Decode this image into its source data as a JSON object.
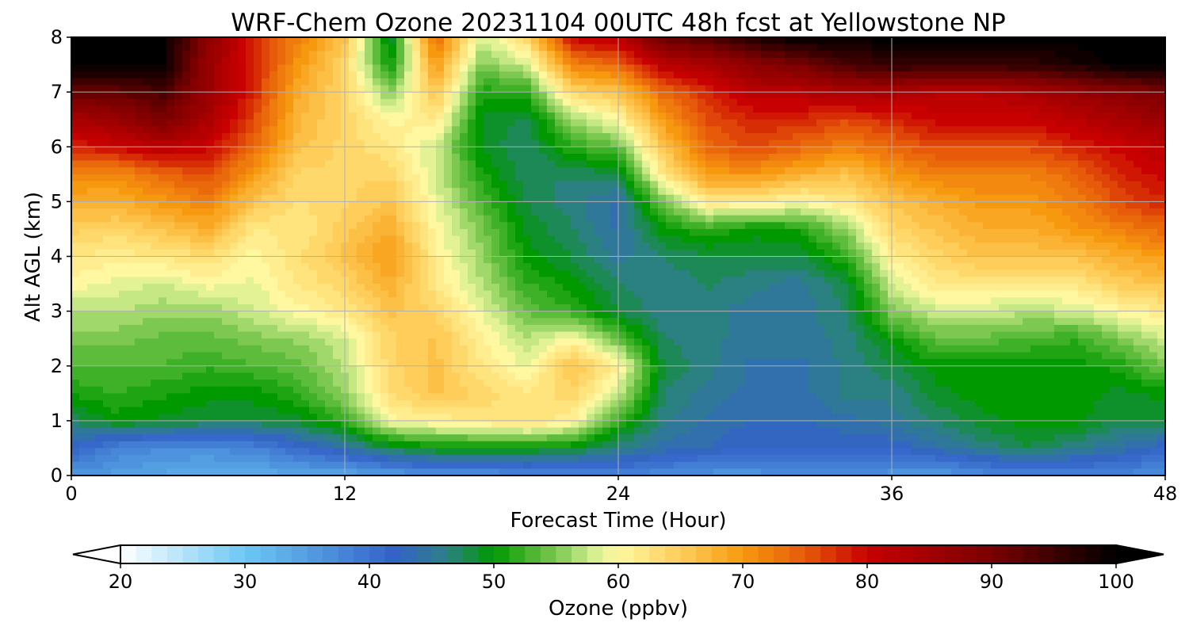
{
  "chart_data": {
    "type": "heatmap",
    "subtype": "filled-contour",
    "title": "WRF-Chem Ozone  20231104 00UTC 48h fcst at Yellowstone NP",
    "xlabel": "Forecast Time (Hour)",
    "ylabel": "Alt AGL (km)",
    "xlim": [
      0,
      48
    ],
    "ylim": [
      0,
      8
    ],
    "xticks": [
      "0",
      "12",
      "24",
      "36",
      "48"
    ],
    "yticks": [
      "0",
      "1",
      "2",
      "3",
      "4",
      "5",
      "6",
      "7",
      "8"
    ],
    "grid": true,
    "x": [
      0,
      2,
      4,
      6,
      8,
      10,
      12,
      14,
      16,
      18,
      20,
      22,
      24,
      26,
      28,
      30,
      32,
      34,
      36,
      38,
      40,
      42,
      44,
      46,
      48
    ],
    "y": [
      0,
      0.5,
      1,
      1.5,
      2,
      2.5,
      3,
      3.5,
      4,
      4.5,
      5,
      5.5,
      6,
      6.5,
      7,
      7.5,
      8
    ],
    "z_units": "ppbv",
    "z": [
      [
        36,
        35,
        34,
        33,
        33,
        34,
        34,
        35,
        36,
        36,
        37,
        37,
        38,
        37,
        36,
        36,
        37,
        37,
        36,
        35,
        37,
        38,
        38,
        38,
        36
      ],
      [
        42,
        38,
        37,
        37,
        38,
        41,
        44,
        48,
        50,
        50,
        50,
        49,
        46,
        44,
        43,
        42,
        42,
        42,
        42,
        44,
        46,
        48,
        46,
        44,
        42
      ],
      [
        47,
        50,
        49,
        48,
        48,
        49,
        52,
        60,
        61,
        62,
        63,
        61,
        52,
        46,
        44,
        43,
        43,
        44,
        45,
        47,
        49,
        50,
        50,
        48,
        48
      ],
      [
        51,
        52,
        51,
        50,
        50,
        52,
        56,
        63,
        66,
        64,
        62,
        64,
        58,
        47,
        45,
        44,
        44,
        46,
        46,
        49,
        50,
        50,
        50,
        49,
        50
      ],
      [
        53,
        53,
        53,
        52,
        53,
        54,
        57,
        64,
        66,
        62,
        59,
        66,
        61,
        48,
        46,
        44,
        44,
        46,
        48,
        50,
        50,
        50,
        50,
        51,
        55
      ],
      [
        55,
        55,
        54,
        54,
        55,
        56,
        58,
        64,
        66,
        61,
        57,
        60,
        54,
        47,
        46,
        45,
        45,
        46,
        50,
        54,
        54,
        53,
        52,
        55,
        58
      ],
      [
        57,
        57,
        56,
        56,
        58,
        60,
        62,
        66,
        64,
        59,
        54,
        52,
        48,
        46,
        46,
        45,
        45,
        47,
        55,
        58,
        58,
        57,
        58,
        60,
        62
      ],
      [
        60,
        59,
        58,
        60,
        59,
        62,
        64,
        68,
        62,
        57,
        52,
        50,
        47,
        46,
        47,
        46,
        45,
        48,
        58,
        62,
        62,
        62,
        62,
        65,
        66
      ],
      [
        62,
        61,
        62,
        63,
        60,
        63,
        66,
        70,
        61,
        56,
        50,
        48,
        45,
        47,
        48,
        48,
        48,
        52,
        61,
        64,
        66,
        66,
        66,
        68,
        70
      ],
      [
        65,
        64,
        66,
        68,
        62,
        62,
        65,
        68,
        60,
        55,
        49,
        47,
        44,
        50,
        52,
        50,
        51,
        56,
        64,
        66,
        68,
        68,
        70,
        72,
        74
      ],
      [
        68,
        68,
        70,
        72,
        66,
        63,
        64,
        66,
        59,
        53,
        48,
        46,
        44,
        55,
        62,
        62,
        60,
        62,
        66,
        68,
        70,
        70,
        72,
        76,
        78
      ],
      [
        72,
        71,
        74,
        76,
        70,
        64,
        64,
        64,
        58,
        51,
        47,
        47,
        48,
        62,
        70,
        70,
        68,
        66,
        70,
        72,
        72,
        72,
        74,
        78,
        80
      ],
      [
        78,
        80,
        82,
        80,
        74,
        66,
        64,
        62,
        58,
        49,
        47,
        52,
        54,
        66,
        74,
        76,
        74,
        72,
        74,
        76,
        76,
        76,
        78,
        80,
        82
      ],
      [
        84,
        86,
        90,
        84,
        76,
        67,
        64,
        60,
        62,
        49,
        48,
        56,
        60,
        70,
        76,
        78,
        78,
        76,
        78,
        80,
        80,
        80,
        82,
        84,
        86
      ],
      [
        92,
        92,
        94,
        86,
        78,
        68,
        64,
        55,
        66,
        51,
        52,
        64,
        66,
        74,
        78,
        82,
        82,
        84,
        84,
        82,
        82,
        84,
        86,
        88,
        90
      ],
      [
        100,
        100,
        100,
        86,
        78,
        70,
        64,
        50,
        70,
        55,
        58,
        72,
        74,
        82,
        84,
        88,
        90,
        94,
        96,
        96,
        96,
        96,
        98,
        100,
        100
      ],
      [
        100,
        100,
        100,
        88,
        78,
        72,
        66,
        48,
        74,
        58,
        64,
        80,
        82,
        92,
        94,
        98,
        100,
        100,
        100,
        100,
        100,
        100,
        100,
        100,
        100
      ]
    ],
    "colorbar": {
      "label": "Ozone  (ppbv)",
      "min": 20,
      "max": 100,
      "ticks": [
        "20",
        "30",
        "40",
        "50",
        "60",
        "70",
        "80",
        "90",
        "100"
      ],
      "extend": "both",
      "colormap": [
        [
          20,
          "#ffffff"
        ],
        [
          30,
          "#6cc8f4"
        ],
        [
          42,
          "#3362c8"
        ],
        [
          46,
          "#2e7f8a"
        ],
        [
          50,
          "#009900"
        ],
        [
          55,
          "#7cc850"
        ],
        [
          58,
          "#d4ee90"
        ],
        [
          60,
          "#fff8a0"
        ],
        [
          65,
          "#ffcd5a"
        ],
        [
          70,
          "#f7990f"
        ],
        [
          75,
          "#e65a0a"
        ],
        [
          80,
          "#c80000"
        ],
        [
          90,
          "#7a0000"
        ],
        [
          100,
          "#000000"
        ]
      ]
    }
  }
}
